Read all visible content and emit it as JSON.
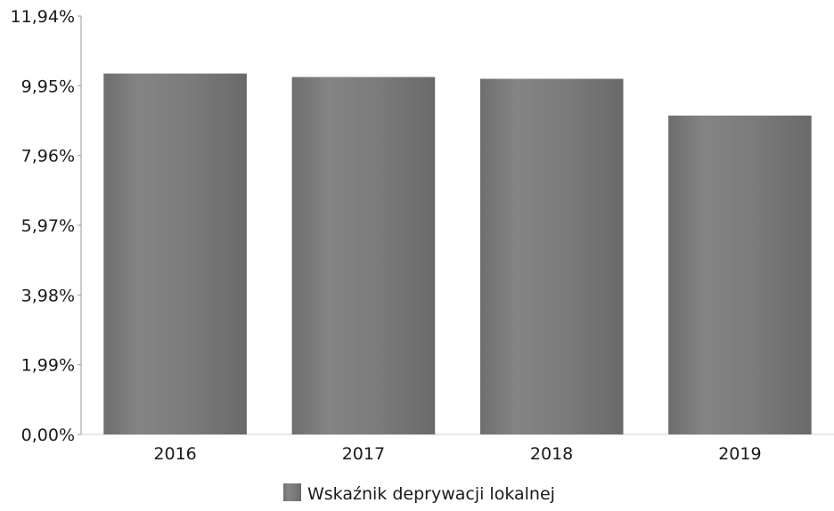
{
  "chart_data": {
    "type": "bar",
    "categories": [
      "2016",
      "2017",
      "2018",
      "2019"
    ],
    "series": [
      {
        "name": "Wskaźnik deprywacji lokalnej",
        "values": [
          10.3,
          10.2,
          10.15,
          9.1
        ],
        "color": "#7d7d7d"
      }
    ],
    "y_ticks": [
      0,
      1.99,
      3.98,
      5.97,
      7.96,
      9.95,
      11.94
    ],
    "y_tick_labels": [
      "0,00%",
      "1,99%",
      "3,98%",
      "5,97%",
      "7,96%",
      "9,95%",
      "11,94%"
    ],
    "ylim": [
      0,
      11.94
    ],
    "title": "",
    "xlabel": "",
    "ylabel": "",
    "grid": false,
    "legend_position": "bottom-center"
  }
}
